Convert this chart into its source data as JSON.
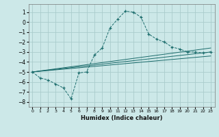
{
  "xlabel": "Humidex (Indice chaleur)",
  "bg_color": "#cce8e8",
  "grid_color": "#aacccc",
  "line_color": "#1a6b6b",
  "xlim": [
    -0.5,
    23.5
  ],
  "ylim": [
    -8.5,
    1.8
  ],
  "yticks": [
    1,
    0,
    -1,
    -2,
    -3,
    -4,
    -5,
    -6,
    -7,
    -8
  ],
  "xticks": [
    0,
    1,
    2,
    3,
    4,
    5,
    6,
    7,
    8,
    9,
    10,
    11,
    12,
    13,
    14,
    15,
    16,
    17,
    18,
    19,
    20,
    21,
    22,
    23
  ],
  "curve1_x": [
    0,
    1,
    2,
    3,
    4,
    5,
    6,
    7,
    8,
    9,
    10,
    11,
    12,
    13,
    14,
    15,
    16,
    17,
    18,
    19,
    20,
    21,
    22,
    23
  ],
  "curve1_y": [
    -5.0,
    -5.6,
    -5.8,
    -6.2,
    -6.6,
    -7.7,
    -5.1,
    -5.0,
    -3.3,
    -2.6,
    -0.6,
    0.3,
    1.1,
    1.0,
    0.5,
    -1.2,
    -1.7,
    -2.0,
    -2.5,
    -2.7,
    -3.0,
    -3.0,
    -3.1,
    -3.0
  ],
  "line1_x": [
    0,
    23
  ],
  "line1_y": [
    -5.0,
    -2.6
  ],
  "line2_x": [
    0,
    23
  ],
  "line2_y": [
    -5.0,
    -3.0
  ],
  "line3_x": [
    0,
    23
  ],
  "line3_y": [
    -5.0,
    -3.4
  ]
}
